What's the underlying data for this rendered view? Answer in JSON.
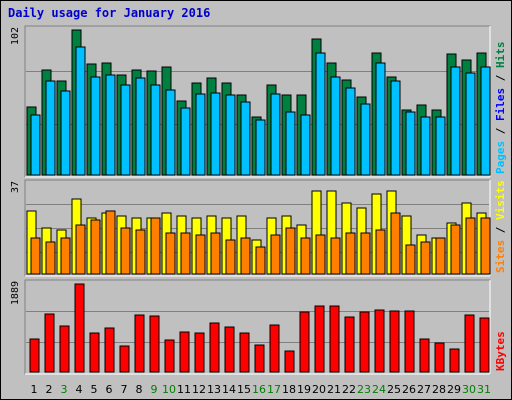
{
  "chart_data": {
    "type": "bar",
    "title": "Daily usage for January 2016",
    "colors": {
      "hits": "#008040",
      "files": "#00c0ff",
      "visits": "#ffff00",
      "sites": "#ff8000",
      "kbytes": "#ff0000",
      "title": "#0000cc",
      "weekday": "#000000",
      "weekend": "#008000",
      "plot_bg": "#c0c0c0",
      "frame": "#808080"
    },
    "x": [
      "1",
      "2",
      "3",
      "4",
      "5",
      "6",
      "7",
      "8",
      "9",
      "10",
      "11",
      "12",
      "13",
      "14",
      "15",
      "16",
      "17",
      "18",
      "19",
      "20",
      "21",
      "22",
      "23",
      "24",
      "25",
      "26",
      "27",
      "28",
      "29",
      "30",
      "31"
    ],
    "weekend_days": [
      "3",
      "9",
      "10",
      "16",
      "17",
      "23",
      "24",
      "30",
      "31"
    ],
    "panels": [
      {
        "id": "hits-files",
        "ymax_label": "102",
        "ymax": 102,
        "side_labels": [
          {
            "text": "Pages",
            "color": "#00c0ff"
          },
          {
            "text": " / ",
            "color": "#000000"
          },
          {
            "text": "Files",
            "color": "#0000ff"
          },
          {
            "text": " / ",
            "color": "#000000"
          },
          {
            "text": "Hits",
            "color": "#008040"
          }
        ],
        "series": [
          {
            "name": "Hits",
            "color": "#008040",
            "values": [
              48,
              74,
              66,
              102,
              78,
              79,
              70,
              74,
              73,
              76,
              52,
              65,
              68,
              65,
              56,
              41,
              63,
              56,
              56,
              96,
              79,
              67,
              55,
              86,
              69,
              46,
              49,
              46,
              85,
              81,
              86
            ]
          },
          {
            "name": "Files",
            "color": "#00c0ff",
            "values": [
              42,
              66,
              59,
              90,
              69,
              70,
              63,
              68,
              63,
              60,
              47,
              57,
              58,
              56,
              51,
              39,
              57,
              44,
              42,
              86,
              69,
              61,
              50,
              79,
              66,
              44,
              41,
              41,
              76,
              72,
              76
            ]
          }
        ]
      },
      {
        "id": "visits-sites",
        "ymax_label": "37",
        "ymax": 37,
        "side_labels": [
          {
            "text": "Sites",
            "color": "#ff8000"
          },
          {
            "text": " / ",
            "color": "#000000"
          },
          {
            "text": "Visits",
            "color": "#ffff00"
          }
        ],
        "series": [
          {
            "name": "Visits",
            "color": "#ffff00",
            "values": [
              26,
              19,
              18,
              31,
              23,
              25,
              24,
              23,
              23,
              25,
              24,
              23,
              24,
              23,
              24,
              14,
              23,
              24,
              20,
              34,
              34,
              29,
              27,
              33,
              34,
              24,
              16,
              15,
              21,
              29,
              25
            ]
          },
          {
            "name": "Sites",
            "color": "#ff8000",
            "values": [
              15,
              13,
              15,
              20,
              22,
              26,
              19,
              18,
              23,
              17,
              17,
              16,
              17,
              14,
              15,
              11,
              16,
              19,
              15,
              16,
              15,
              17,
              17,
              18,
              25,
              12,
              13,
              15,
              20,
              23,
              23
            ]
          }
        ]
      },
      {
        "id": "kbytes",
        "ymax_label": "1889",
        "ymax": 1889,
        "side_labels": [
          {
            "text": "KBytes",
            "color": "#ff0000"
          }
        ],
        "series": [
          {
            "name": "KBytes",
            "color": "#ff0000",
            "values": [
              700,
              1240,
              990,
              1889,
              830,
              950,
              560,
              1220,
              1200,
              680,
              860,
              840,
              1060,
              960,
              840,
              590,
              1000,
              460,
              1280,
              1420,
              1420,
              1180,
              1280,
              1340,
              1310,
              1300,
              710,
              620,
              500,
              1230,
              1160
            ]
          }
        ]
      }
    ]
  }
}
